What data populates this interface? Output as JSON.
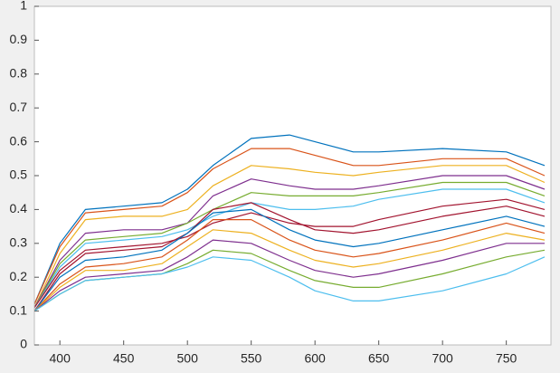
{
  "chart_data": {
    "type": "line",
    "x": [
      380,
      400,
      420,
      450,
      480,
      500,
      520,
      550,
      580,
      600,
      630,
      650,
      700,
      750,
      780
    ],
    "xlim": [
      380,
      785
    ],
    "xticks": [
      400,
      450,
      500,
      550,
      600,
      650,
      700,
      750
    ],
    "ylim": [
      0,
      1
    ],
    "yticks": [
      0,
      0.1,
      0.2,
      0.3,
      0.4,
      0.5,
      0.6,
      0.7,
      0.8,
      0.9,
      1
    ],
    "grid": false,
    "series": [
      {
        "color": "#0072bd",
        "values": [
          0.12,
          0.3,
          0.4,
          0.41,
          0.42,
          0.46,
          0.53,
          0.61,
          0.62,
          0.6,
          0.57,
          0.57,
          0.58,
          0.57,
          0.53
        ]
      },
      {
        "color": "#d95319",
        "values": [
          0.12,
          0.29,
          0.39,
          0.4,
          0.41,
          0.45,
          0.52,
          0.58,
          0.58,
          0.56,
          0.53,
          0.53,
          0.55,
          0.55,
          0.5
        ]
      },
      {
        "color": "#edb120",
        "values": [
          0.11,
          0.27,
          0.37,
          0.38,
          0.38,
          0.4,
          0.47,
          0.53,
          0.52,
          0.51,
          0.5,
          0.51,
          0.53,
          0.53,
          0.48
        ]
      },
      {
        "color": "#7e2f8e",
        "values": [
          0.11,
          0.25,
          0.33,
          0.34,
          0.34,
          0.36,
          0.44,
          0.49,
          0.47,
          0.46,
          0.46,
          0.47,
          0.5,
          0.5,
          0.46
        ]
      },
      {
        "color": "#77ac30",
        "values": [
          0.11,
          0.24,
          0.31,
          0.32,
          0.33,
          0.36,
          0.4,
          0.45,
          0.44,
          0.44,
          0.44,
          0.45,
          0.48,
          0.48,
          0.44
        ]
      },
      {
        "color": "#4dbeee",
        "values": [
          0.11,
          0.23,
          0.3,
          0.31,
          0.32,
          0.34,
          0.38,
          0.42,
          0.4,
          0.4,
          0.41,
          0.43,
          0.46,
          0.46,
          0.42
        ]
      },
      {
        "color": "#a2142f",
        "values": [
          0.11,
          0.22,
          0.28,
          0.29,
          0.3,
          0.32,
          0.36,
          0.39,
          0.36,
          0.35,
          0.35,
          0.37,
          0.41,
          0.43,
          0.4
        ]
      },
      {
        "color": "#a2142f",
        "values": [
          0.1,
          0.21,
          0.27,
          0.28,
          0.29,
          0.33,
          0.4,
          0.42,
          0.37,
          0.34,
          0.33,
          0.34,
          0.38,
          0.41,
          0.38
        ]
      },
      {
        "color": "#0072bd",
        "values": [
          0.1,
          0.2,
          0.25,
          0.26,
          0.28,
          0.33,
          0.39,
          0.4,
          0.34,
          0.31,
          0.29,
          0.3,
          0.34,
          0.38,
          0.35
        ]
      },
      {
        "color": "#d95319",
        "values": [
          0.1,
          0.18,
          0.23,
          0.24,
          0.26,
          0.31,
          0.37,
          0.37,
          0.31,
          0.28,
          0.26,
          0.27,
          0.31,
          0.36,
          0.33
        ]
      },
      {
        "color": "#edb120",
        "values": [
          0.1,
          0.17,
          0.22,
          0.22,
          0.24,
          0.29,
          0.34,
          0.33,
          0.28,
          0.25,
          0.23,
          0.24,
          0.28,
          0.33,
          0.31
        ]
      },
      {
        "color": "#7e2f8e",
        "values": [
          0.1,
          0.16,
          0.2,
          0.21,
          0.22,
          0.26,
          0.31,
          0.3,
          0.25,
          0.22,
          0.2,
          0.21,
          0.25,
          0.3,
          0.3
        ]
      },
      {
        "color": "#77ac30",
        "values": [
          0.1,
          0.15,
          0.19,
          0.2,
          0.21,
          0.24,
          0.28,
          0.27,
          0.22,
          0.19,
          0.17,
          0.17,
          0.21,
          0.26,
          0.28
        ]
      },
      {
        "color": "#4dbeee",
        "values": [
          0.1,
          0.15,
          0.19,
          0.2,
          0.21,
          0.23,
          0.26,
          0.25,
          0.2,
          0.16,
          0.13,
          0.13,
          0.16,
          0.21,
          0.26
        ]
      }
    ]
  }
}
